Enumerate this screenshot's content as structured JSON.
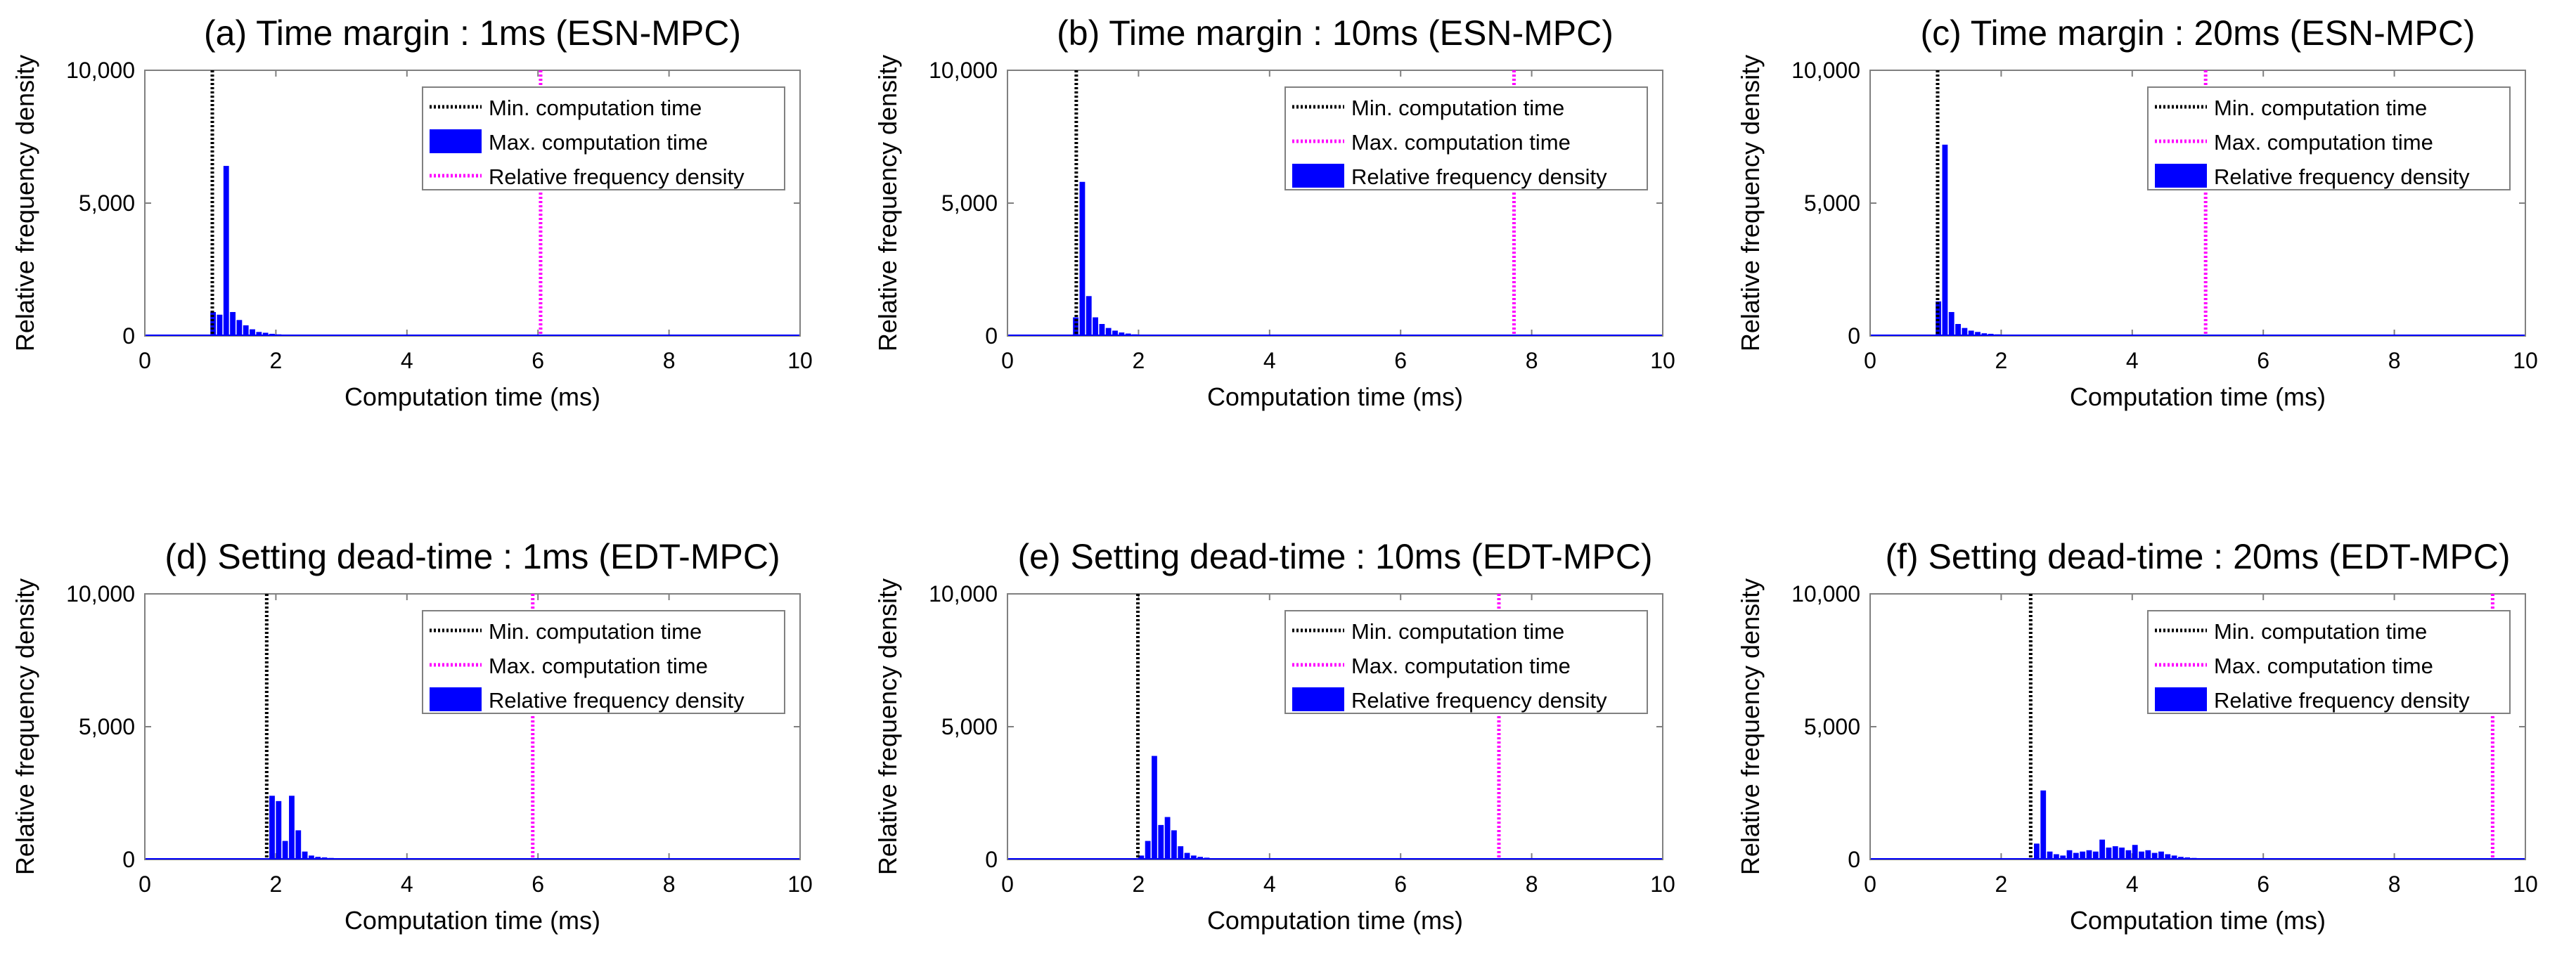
{
  "chart_data": [
    {
      "id": "a",
      "type": "bar",
      "title": "(a)  Time margin : 1ms (ESN-MPC)",
      "xlabel": "Computation time (ms)",
      "ylabel": "Relative frequency density",
      "xlim": [
        0,
        10
      ],
      "ylim": [
        0,
        10000
      ],
      "xticks": [
        "0",
        "2",
        "4",
        "6",
        "8",
        "10"
      ],
      "yticks": [
        "0",
        "5,000",
        "10,000"
      ],
      "legend": [
        "Min. computation time",
        "Max. computation time",
        "Relative frequency density"
      ],
      "legend_order": [
        "min",
        "hist",
        "max"
      ],
      "min_time": 1.03,
      "max_time": 6.04,
      "bin_width": 0.1,
      "bars": [
        [
          1.0,
          900
        ],
        [
          1.1,
          800
        ],
        [
          1.2,
          6400
        ],
        [
          1.3,
          900
        ],
        [
          1.4,
          600
        ],
        [
          1.5,
          400
        ],
        [
          1.6,
          250
        ],
        [
          1.7,
          150
        ],
        [
          1.8,
          120
        ],
        [
          1.9,
          80
        ],
        [
          2.0,
          60
        ],
        [
          2.1,
          40
        ],
        [
          2.2,
          30
        ]
      ]
    },
    {
      "id": "b",
      "type": "bar",
      "title": "(b)  Time margin : 10ms (ESN-MPC)",
      "xlabel": "Computation time (ms)",
      "ylabel": "Relative frequency density",
      "xlim": [
        0,
        10
      ],
      "ylim": [
        0,
        10000
      ],
      "xticks": [
        "0",
        "2",
        "4",
        "6",
        "8",
        "10"
      ],
      "yticks": [
        "0",
        "5,000",
        "10,000"
      ],
      "legend": [
        "Min. computation time",
        "Max. computation time",
        "Relative frequency density"
      ],
      "legend_order": [
        "min",
        "max",
        "hist"
      ],
      "min_time": 1.05,
      "max_time": 7.73,
      "bin_width": 0.1,
      "bars": [
        [
          1.0,
          700
        ],
        [
          1.1,
          5800
        ],
        [
          1.2,
          1500
        ],
        [
          1.3,
          700
        ],
        [
          1.4,
          450
        ],
        [
          1.5,
          300
        ],
        [
          1.6,
          200
        ],
        [
          1.7,
          130
        ],
        [
          1.8,
          90
        ],
        [
          1.9,
          60
        ],
        [
          2.0,
          40
        ],
        [
          2.1,
          30
        ],
        [
          2.2,
          20
        ]
      ]
    },
    {
      "id": "c",
      "type": "bar",
      "title": "(c)  Time margin : 20ms (ESN-MPC)",
      "xlabel": "Computation time (ms)",
      "ylabel": "Relative frequency density",
      "xlim": [
        0,
        10
      ],
      "ylim": [
        0,
        10000
      ],
      "xticks": [
        "0",
        "2",
        "4",
        "6",
        "8",
        "10"
      ],
      "yticks": [
        "0",
        "5,000",
        "10,000"
      ],
      "legend": [
        "Min. computation time",
        "Max. computation time",
        "Relative frequency density"
      ],
      "legend_order": [
        "min",
        "max",
        "hist"
      ],
      "min_time": 1.03,
      "max_time": 5.12,
      "bin_width": 0.1,
      "bars": [
        [
          1.0,
          1300
        ],
        [
          1.1,
          7200
        ],
        [
          1.2,
          900
        ],
        [
          1.3,
          450
        ],
        [
          1.4,
          300
        ],
        [
          1.5,
          200
        ],
        [
          1.6,
          150
        ],
        [
          1.7,
          100
        ],
        [
          1.8,
          80
        ],
        [
          1.9,
          60
        ],
        [
          2.0,
          50
        ],
        [
          2.1,
          40
        ],
        [
          2.2,
          30
        ]
      ]
    },
    {
      "id": "d",
      "type": "bar",
      "title": "(d)  Setting dead-time : 1ms (EDT-MPC)",
      "xlabel": "Computation time (ms)",
      "ylabel": "Relative frequency density",
      "xlim": [
        0,
        10
      ],
      "ylim": [
        0,
        10000
      ],
      "xticks": [
        "0",
        "2",
        "4",
        "6",
        "8",
        "10"
      ],
      "yticks": [
        "0",
        "5,000",
        "10,000"
      ],
      "legend": [
        "Min. computation time",
        "Max. computation time",
        "Relative frequency density"
      ],
      "legend_order": [
        "min",
        "max",
        "hist"
      ],
      "min_time": 1.86,
      "max_time": 5.92,
      "bin_width": 0.1,
      "bars": [
        [
          1.9,
          2400
        ],
        [
          2.0,
          2200
        ],
        [
          2.1,
          700
        ],
        [
          2.2,
          2400
        ],
        [
          2.3,
          1100
        ],
        [
          2.4,
          300
        ],
        [
          2.5,
          150
        ],
        [
          2.6,
          100
        ],
        [
          2.7,
          80
        ],
        [
          2.8,
          60
        ],
        [
          2.9,
          40
        ],
        [
          3.0,
          30
        ],
        [
          3.1,
          20
        ]
      ]
    },
    {
      "id": "e",
      "type": "bar",
      "title": "(e)  Setting dead-time : 10ms (EDT-MPC)",
      "xlabel": "Computation time (ms)",
      "ylabel": "Relative frequency density",
      "xlim": [
        0,
        10
      ],
      "ylim": [
        0,
        10000
      ],
      "xticks": [
        "0",
        "2",
        "4",
        "6",
        "8",
        "10"
      ],
      "yticks": [
        "0",
        "5,000",
        "10,000"
      ],
      "legend": [
        "Min. computation time",
        "Max. computation time",
        "Relative frequency density"
      ],
      "legend_order": [
        "min",
        "max",
        "hist"
      ],
      "min_time": 1.99,
      "max_time": 7.5,
      "bin_width": 0.1,
      "bars": [
        [
          2.0,
          150
        ],
        [
          2.1,
          700
        ],
        [
          2.2,
          3900
        ],
        [
          2.3,
          1300
        ],
        [
          2.4,
          1600
        ],
        [
          2.5,
          1100
        ],
        [
          2.6,
          500
        ],
        [
          2.7,
          250
        ],
        [
          2.8,
          150
        ],
        [
          2.9,
          100
        ],
        [
          3.0,
          70
        ],
        [
          3.1,
          50
        ],
        [
          3.2,
          40
        ],
        [
          3.3,
          30
        ],
        [
          3.5,
          20
        ],
        [
          3.7,
          30
        ],
        [
          4.0,
          15
        ]
      ]
    },
    {
      "id": "f",
      "type": "bar",
      "title": "(f)  Setting dead-time : 20ms (EDT-MPC)",
      "xlabel": "Computation time (ms)",
      "ylabel": "Relative frequency density",
      "xlim": [
        0,
        10
      ],
      "ylim": [
        0,
        10000
      ],
      "xticks": [
        "0",
        "2",
        "4",
        "6",
        "8",
        "10"
      ],
      "yticks": [
        "0",
        "5,000",
        "10,000"
      ],
      "legend": [
        "Min. computation time",
        "Max. computation time",
        "Relative frequency density"
      ],
      "legend_order": [
        "min",
        "max",
        "hist"
      ],
      "min_time": 2.45,
      "max_time": 9.5,
      "bin_width": 0.1,
      "bars": [
        [
          2.5,
          600
        ],
        [
          2.6,
          2600
        ],
        [
          2.7,
          300
        ],
        [
          2.8,
          200
        ],
        [
          2.9,
          150
        ],
        [
          3.0,
          350
        ],
        [
          3.1,
          250
        ],
        [
          3.2,
          300
        ],
        [
          3.3,
          350
        ],
        [
          3.4,
          300
        ],
        [
          3.5,
          750
        ],
        [
          3.6,
          450
        ],
        [
          3.7,
          500
        ],
        [
          3.8,
          450
        ],
        [
          3.9,
          350
        ],
        [
          4.0,
          550
        ],
        [
          4.1,
          300
        ],
        [
          4.2,
          350
        ],
        [
          4.3,
          250
        ],
        [
          4.4,
          300
        ],
        [
          4.5,
          200
        ],
        [
          4.6,
          150
        ],
        [
          4.7,
          100
        ],
        [
          4.8,
          80
        ],
        [
          4.9,
          60
        ],
        [
          5.0,
          50
        ],
        [
          5.2,
          30
        ],
        [
          5.5,
          20
        ]
      ]
    }
  ],
  "colors": {
    "hist": "#0000ff",
    "min_line": "#000000",
    "max_line": "#ff00ff",
    "axes": "#808080"
  }
}
